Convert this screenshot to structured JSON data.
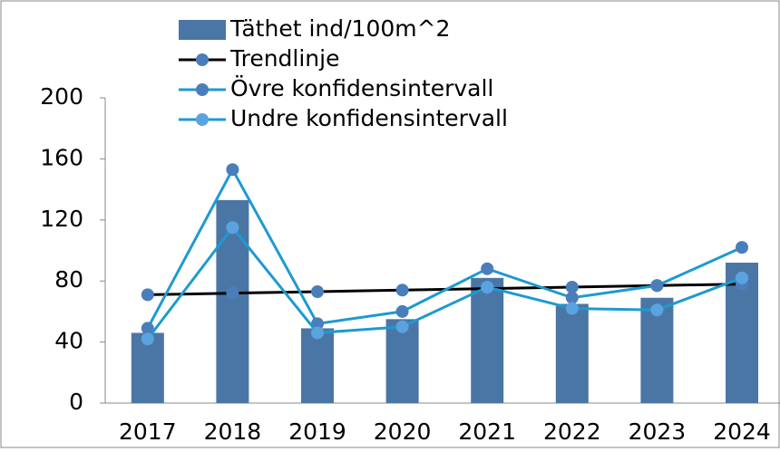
{
  "chart_data": {
    "type": "bar",
    "categories": [
      "2017",
      "2018",
      "2019",
      "2020",
      "2021",
      "2022",
      "2023",
      "2024"
    ],
    "series": [
      {
        "name": "Täthet ind/100m^2",
        "type": "bar",
        "color": "#4a76a6",
        "values": [
          46,
          133,
          49,
          55,
          82,
          65,
          69,
          92
        ]
      },
      {
        "name": "Trendlinje",
        "type": "line",
        "color": "#000000",
        "marker_color": "#4a7ebb",
        "values": [
          71,
          72,
          73,
          74,
          75,
          76,
          77,
          78
        ]
      },
      {
        "name": "Övre konfidensintervall",
        "type": "line",
        "color": "#1e9ad0",
        "marker_color": "#4a7ebb",
        "values": [
          49,
          153,
          52,
          60,
          88,
          69,
          77,
          102
        ]
      },
      {
        "name": "Undre konfidensintervall",
        "type": "line",
        "color": "#1e9ad0",
        "marker_color": "#5ba3de",
        "values": [
          42,
          115,
          46,
          50,
          76,
          62,
          61,
          82
        ]
      }
    ],
    "ylim": [
      0,
      200
    ],
    "yticks": [
      0,
      40,
      80,
      120,
      160,
      200
    ]
  }
}
